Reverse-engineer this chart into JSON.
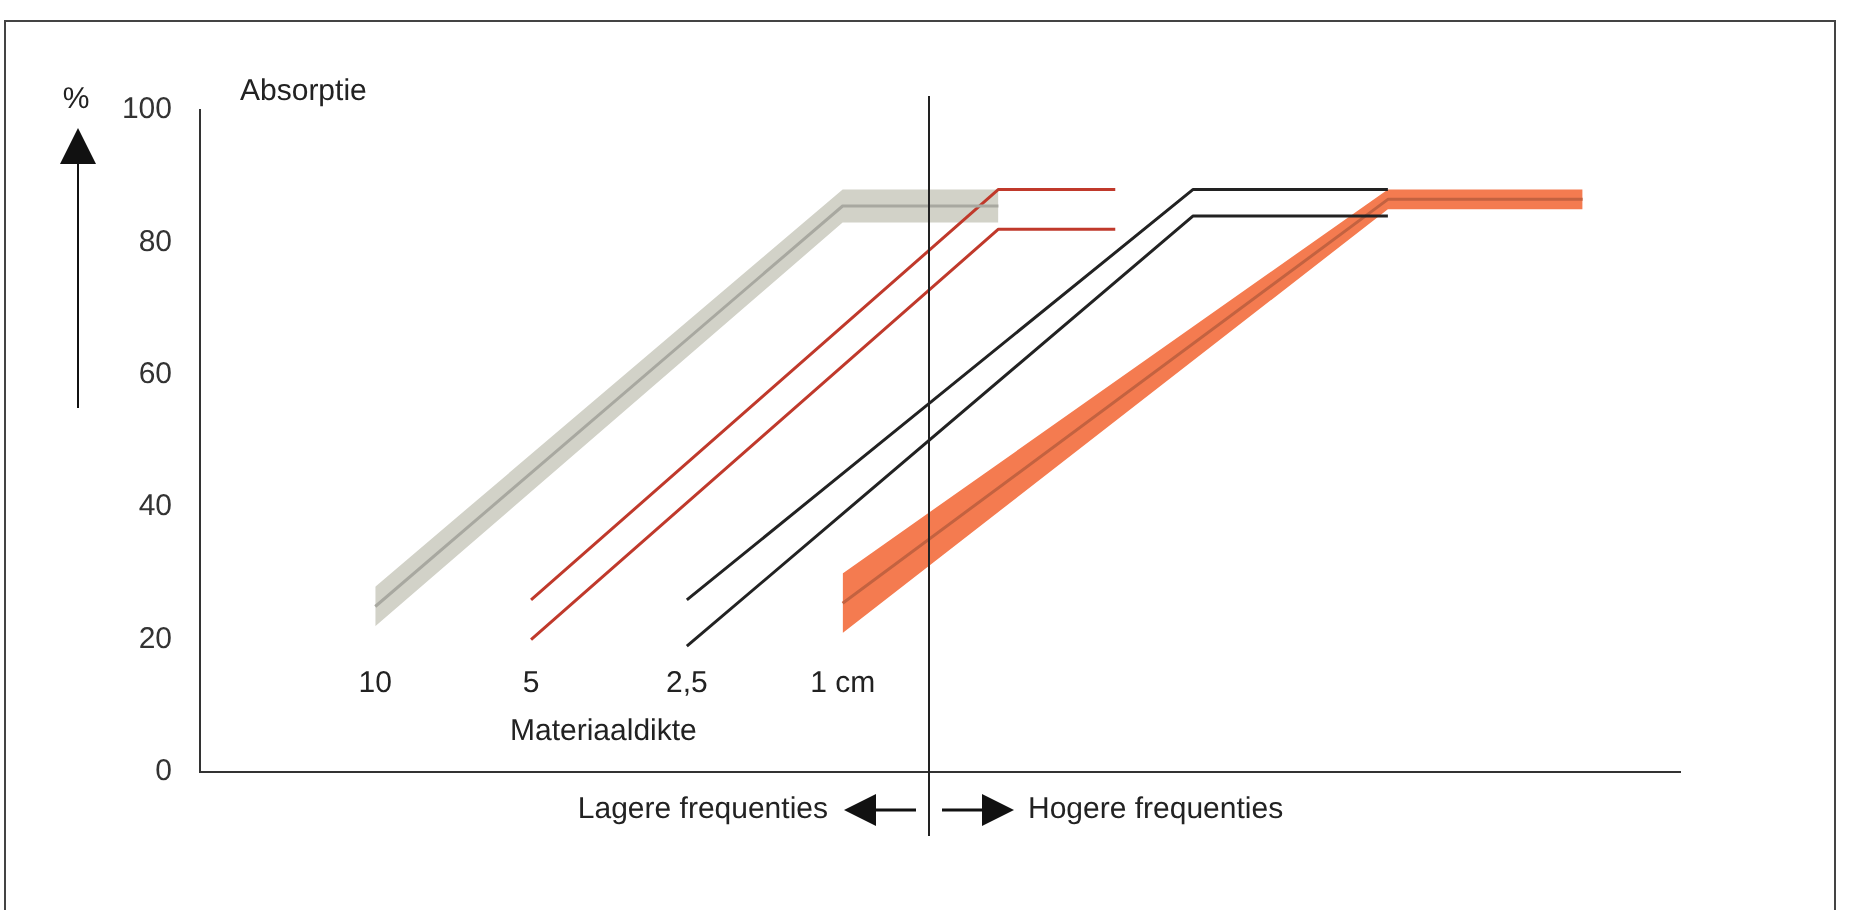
{
  "chart_data": {
    "type": "line",
    "title": "Absorptie",
    "ylabel": "%",
    "categories": [
      null,
      null,
      null,
      null,
      null,
      null,
      null,
      null,
      null,
      null,
      null,
      null,
      null,
      null,
      null,
      null,
      null,
      null,
      null,
      null,
      null,
      null,
      null,
      null,
      null,
      null,
      null,
      null,
      null,
      null,
      null,
      null,
      null,
      null,
      null,
      null,
      null,
      null
    ],
    "series": [
      {
        "color": "#a8a8a0",
        "values": [
          null,
          null,
          null,
          null,
          25,
          null,
          null,
          null,
          null,
          null,
          null,
          null,
          null,
          null,
          null,
          null,
          85.5,
          null,
          null,
          null,
          85.5,
          null,
          null,
          null,
          null,
          null,
          null,
          null,
          null,
          null,
          null,
          null,
          null,
          null,
          null,
          null,
          null,
          null
        ],
        "lower": [
          null,
          null,
          null,
          null,
          22,
          null,
          null,
          null,
          null,
          null,
          null,
          null,
          null,
          null,
          null,
          null,
          83,
          null,
          null,
          null,
          83,
          null,
          null,
          null,
          null,
          null,
          null,
          null,
          null,
          null,
          null,
          null,
          null,
          null,
          null,
          null,
          null,
          null
        ],
        "upper": [
          null,
          null,
          null,
          null,
          28,
          null,
          null,
          null,
          null,
          null,
          null,
          null,
          null,
          null,
          null,
          null,
          88,
          null,
          null,
          null,
          88,
          null,
          null,
          null,
          null,
          null,
          null,
          null,
          null,
          null,
          null,
          null,
          null,
          null,
          null,
          null,
          null,
          null
        ]
      },
      {
        "color": "#c0392b",
        "values": [
          null,
          null,
          null,
          null,
          null,
          null,
          null,
          null,
          26,
          null,
          null,
          null,
          null,
          null,
          null,
          null,
          null,
          null,
          null,
          null,
          88,
          null,
          null,
          88,
          null,
          null,
          null,
          null,
          null,
          null,
          null,
          null,
          null,
          null,
          null,
          null,
          null,
          null
        ]
      },
      {
        "color": "#c0392b",
        "values": [
          null,
          null,
          null,
          null,
          null,
          null,
          null,
          null,
          20,
          null,
          null,
          null,
          null,
          null,
          null,
          null,
          null,
          null,
          null,
          null,
          82,
          null,
          null,
          82,
          null,
          null,
          null,
          null,
          null,
          null,
          null,
          null,
          null,
          null,
          null,
          null,
          null,
          null
        ]
      },
      {
        "color": "#222222",
        "values": [
          null,
          null,
          null,
          null,
          null,
          null,
          null,
          null,
          null,
          null,
          null,
          null,
          26,
          null,
          null,
          null,
          null,
          null,
          null,
          null,
          null,
          null,
          null,
          null,
          null,
          88,
          null,
          null,
          null,
          null,
          88,
          null,
          null,
          null,
          null,
          null,
          null,
          null
        ]
      },
      {
        "color": "#222222",
        "values": [
          null,
          null,
          null,
          null,
          null,
          null,
          null,
          null,
          null,
          null,
          null,
          null,
          19,
          null,
          null,
          null,
          null,
          null,
          null,
          null,
          null,
          null,
          null,
          null,
          null,
          84,
          null,
          null,
          null,
          null,
          84,
          null,
          null,
          null,
          null,
          null,
          null,
          null
        ]
      },
      {
        "color": "#c36240",
        "values": [
          null,
          null,
          null,
          null,
          null,
          null,
          null,
          null,
          null,
          null,
          null,
          null,
          null,
          null,
          null,
          null,
          25.5,
          null,
          null,
          null,
          null,
          null,
          null,
          null,
          null,
          null,
          null,
          null,
          null,
          null,
          86.5,
          null,
          null,
          null,
          null,
          86.5,
          null,
          null
        ],
        "lower": [
          null,
          null,
          null,
          null,
          null,
          null,
          null,
          null,
          null,
          null,
          null,
          null,
          null,
          null,
          null,
          null,
          21,
          null,
          null,
          null,
          null,
          null,
          null,
          null,
          null,
          null,
          null,
          null,
          null,
          null,
          85,
          null,
          null,
          null,
          null,
          85,
          null,
          null
        ],
        "upper": [
          null,
          null,
          null,
          null,
          null,
          null,
          null,
          null,
          null,
          null,
          null,
          null,
          null,
          null,
          null,
          null,
          30,
          null,
          null,
          null,
          null,
          null,
          null,
          null,
          null,
          null,
          null,
          null,
          null,
          null,
          88,
          null,
          null,
          null,
          null,
          88,
          null,
          null
        ]
      }
    ],
    "ylim": [
      0,
      100
    ],
    "yticks": [
      0,
      20,
      40,
      60,
      80,
      100
    ],
    "grid": false,
    "legend": false,
    "annotations": [
      "10",
      "5",
      "2,5",
      "1 cm",
      "Materiaaldikte",
      "Lagere frequenties",
      "Hogere frequenties"
    ]
  }
}
